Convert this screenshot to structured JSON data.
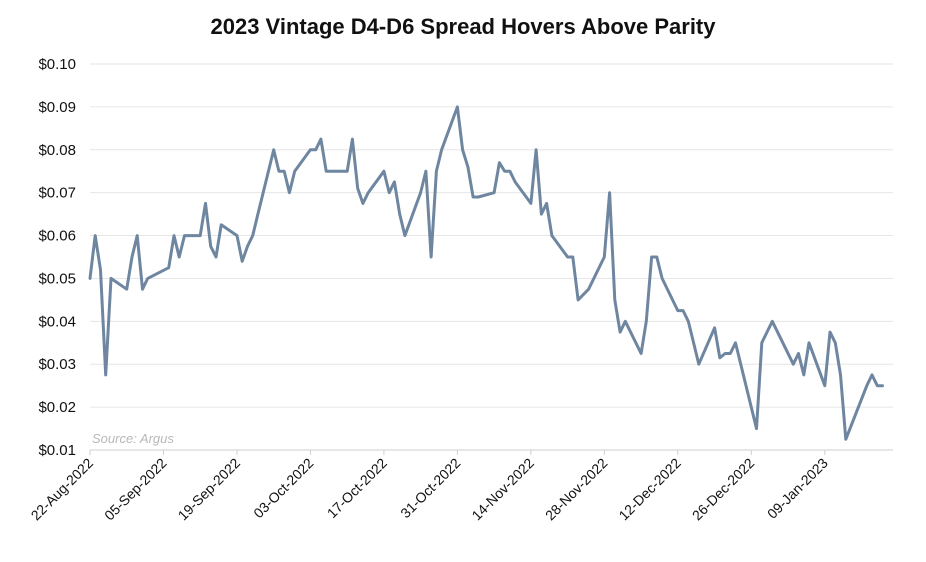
{
  "chart_data": {
    "type": "line",
    "title": "2023 Vintage D4-D6 Spread Hovers Above Parity",
    "xlabel": "",
    "ylabel": "",
    "source": "Source: Argus",
    "ylim": [
      0.01,
      0.1
    ],
    "yticks": [
      "$0.01",
      "$0.02",
      "$0.03",
      "$0.04",
      "$0.05",
      "$0.06",
      "$0.07",
      "$0.08",
      "$0.09",
      "$0.10"
    ],
    "xlim": [
      "2022-08-22",
      "2023-01-22"
    ],
    "xticks": [
      {
        "date": "2022-08-22",
        "label": "22-Aug-2022"
      },
      {
        "date": "2022-09-05",
        "label": "05-Sep-2022"
      },
      {
        "date": "2022-09-19",
        "label": "19-Sep-2022"
      },
      {
        "date": "2022-10-03",
        "label": "03-Oct-2022"
      },
      {
        "date": "2022-10-17",
        "label": "17-Oct-2022"
      },
      {
        "date": "2022-10-31",
        "label": "31-Oct-2022"
      },
      {
        "date": "2022-11-14",
        "label": "14-Nov-2022"
      },
      {
        "date": "2022-11-28",
        "label": "28-Nov-2022"
      },
      {
        "date": "2022-12-12",
        "label": "12-Dec-2022"
      },
      {
        "date": "2022-12-26",
        "label": "26-Dec-2022"
      },
      {
        "date": "2023-01-09",
        "label": "09-Jan-2023"
      }
    ],
    "grid": true,
    "line_color": "#6f86a0",
    "series": [
      {
        "x": [
          "2022-08-22",
          "2022-08-23",
          "2022-08-24",
          "2022-08-25",
          "2022-08-26",
          "2022-08-29",
          "2022-08-30",
          "2022-08-31",
          "2022-09-01",
          "2022-09-02",
          "2022-09-06",
          "2022-09-07",
          "2022-09-08",
          "2022-09-09",
          "2022-09-12",
          "2022-09-13",
          "2022-09-14",
          "2022-09-15",
          "2022-09-16",
          "2022-09-19",
          "2022-09-20",
          "2022-09-21",
          "2022-09-22",
          "2022-09-23",
          "2022-09-26",
          "2022-09-27",
          "2022-09-28",
          "2022-09-29",
          "2022-09-30",
          "2022-10-03",
          "2022-10-04",
          "2022-10-05",
          "2022-10-06",
          "2022-10-07",
          "2022-10-10",
          "2022-10-11",
          "2022-10-12",
          "2022-10-13",
          "2022-10-14",
          "2022-10-17",
          "2022-10-18",
          "2022-10-19",
          "2022-10-20",
          "2022-10-21",
          "2022-10-24",
          "2022-10-25",
          "2022-10-26",
          "2022-10-27",
          "2022-10-28",
          "2022-10-31",
          "2022-11-01",
          "2022-11-02",
          "2022-11-03",
          "2022-11-04",
          "2022-11-07",
          "2022-11-08",
          "2022-11-09",
          "2022-11-10",
          "2022-11-11",
          "2022-11-14",
          "2022-11-15",
          "2022-11-16",
          "2022-11-17",
          "2022-11-18",
          "2022-11-21",
          "2022-11-22",
          "2022-11-23",
          "2022-11-25",
          "2022-11-28",
          "2022-11-29",
          "2022-11-30",
          "2022-12-01",
          "2022-12-02",
          "2022-12-05",
          "2022-12-06",
          "2022-12-07",
          "2022-12-08",
          "2022-12-09",
          "2022-12-12",
          "2022-12-13",
          "2022-12-14",
          "2022-12-15",
          "2022-12-16",
          "2022-12-19",
          "2022-12-20",
          "2022-12-21",
          "2022-12-22",
          "2022-12-23",
          "2022-12-27",
          "2022-12-28",
          "2022-12-29",
          "2022-12-30",
          "2023-01-03",
          "2023-01-04",
          "2023-01-05",
          "2023-01-06",
          "2023-01-09",
          "2023-01-10",
          "2023-01-11",
          "2023-01-12",
          "2023-01-13",
          "2023-01-17",
          "2023-01-18",
          "2023-01-19",
          "2023-01-20"
        ],
        "y": [
          0.05,
          0.06,
          0.052,
          0.0275,
          0.05,
          0.0475,
          0.055,
          0.06,
          0.0475,
          0.05,
          0.0525,
          0.06,
          0.055,
          0.06,
          0.06,
          0.0675,
          0.0575,
          0.055,
          0.0625,
          0.06,
          0.054,
          0.0575,
          0.06,
          0.065,
          0.08,
          0.075,
          0.075,
          0.07,
          0.075,
          0.08,
          0.08,
          0.0825,
          0.075,
          0.075,
          0.075,
          0.0825,
          0.071,
          0.0675,
          0.07,
          0.075,
          0.07,
          0.0725,
          0.065,
          0.06,
          0.07,
          0.075,
          0.055,
          0.075,
          0.08,
          0.09,
          0.08,
          0.076,
          0.069,
          0.069,
          0.07,
          0.077,
          0.075,
          0.075,
          0.0725,
          0.0675,
          0.08,
          0.065,
          0.0675,
          0.06,
          0.055,
          0.055,
          0.045,
          0.0475,
          0.055,
          0.07,
          0.045,
          0.0375,
          0.04,
          0.0325,
          0.04,
          0.055,
          0.055,
          0.05,
          0.0425,
          0.0425,
          0.04,
          0.035,
          0.03,
          0.0385,
          0.0315,
          0.0325,
          0.0325,
          0.035,
          0.015,
          0.035,
          0.0375,
          0.04,
          0.03,
          0.0325,
          0.0275,
          0.035,
          0.025,
          0.0375,
          0.035,
          0.0275,
          0.0125,
          0.025,
          0.0275,
          0.025,
          0.025
        ]
      }
    ]
  }
}
